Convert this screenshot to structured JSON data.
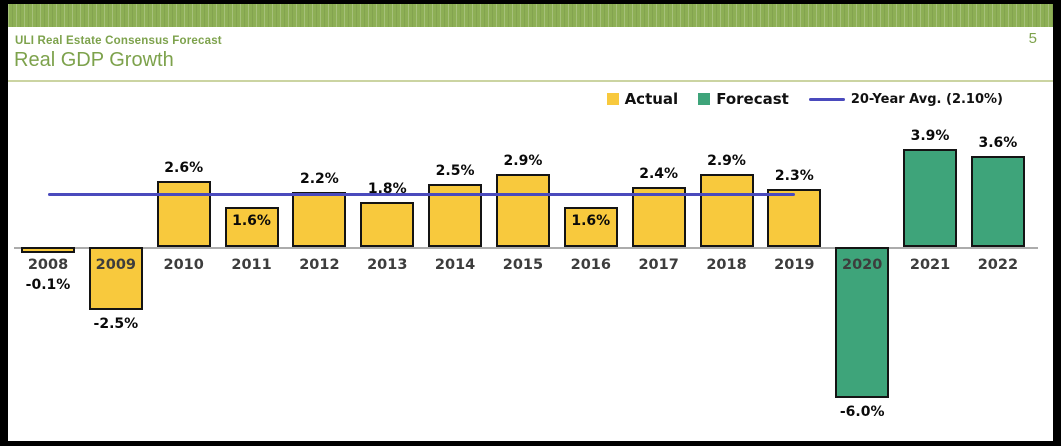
{
  "slide": {
    "kicker": "ULI Real Estate Consensus Forecast",
    "title": "Real GDP Growth",
    "page_number": "5"
  },
  "chart_data": {
    "type": "bar",
    "title": "Real GDP Growth",
    "categories": [
      "2008",
      "2009",
      "2010",
      "2011",
      "2012",
      "2013",
      "2014",
      "2015",
      "2016",
      "2017",
      "2018",
      "2019",
      "2020",
      "2021",
      "2022"
    ],
    "values": [
      -0.1,
      -2.5,
      2.6,
      1.6,
      2.2,
      1.8,
      2.5,
      2.9,
      1.6,
      2.4,
      2.9,
      2.3,
      -6.0,
      3.9,
      3.6
    ],
    "value_labels": [
      "-0.1%",
      "-2.5%",
      "2.6%",
      "1.6%",
      "2.2%",
      "1.8%",
      "2.5%",
      "2.9%",
      "1.6%",
      "2.4%",
      "2.9%",
      "2.3%",
      "-6.0%",
      "3.9%",
      "3.6%"
    ],
    "bar_kinds": [
      "actual",
      "actual",
      "actual",
      "actual",
      "actual",
      "actual",
      "actual",
      "actual",
      "actual",
      "actual",
      "actual",
      "actual",
      "forecast",
      "forecast",
      "forecast"
    ],
    "series": [
      {
        "name": "Actual",
        "years": [
          "2008",
          "2009",
          "2010",
          "2011",
          "2012",
          "2013",
          "2014",
          "2015",
          "2016",
          "2017",
          "2018",
          "2019"
        ],
        "values": [
          -0.1,
          -2.5,
          2.6,
          1.6,
          2.2,
          1.8,
          2.5,
          2.9,
          1.6,
          2.4,
          2.9,
          2.3
        ]
      },
      {
        "name": "Forecast",
        "years": [
          "2020",
          "2021",
          "2022"
        ],
        "values": [
          -6.0,
          3.9,
          3.6
        ]
      }
    ],
    "reference_line": {
      "label": "20-Year Avg. (2.10%)",
      "value": 2.1
    },
    "legend": [
      {
        "label": "Actual",
        "swatch": "square"
      },
      {
        "label": "Forecast",
        "swatch": "square"
      },
      {
        "label": "20-Year Avg. (2.10%)",
        "swatch": "line"
      }
    ],
    "legend_position": "top-right",
    "grid": false,
    "ylim": [
      -7,
      4.5
    ],
    "colors": {
      "actual": "#F8C93D",
      "forecast": "#3EA47A",
      "avg_line": "#4A4ABD",
      "bar_border": "#141414",
      "axis": "#ACACAC"
    }
  }
}
